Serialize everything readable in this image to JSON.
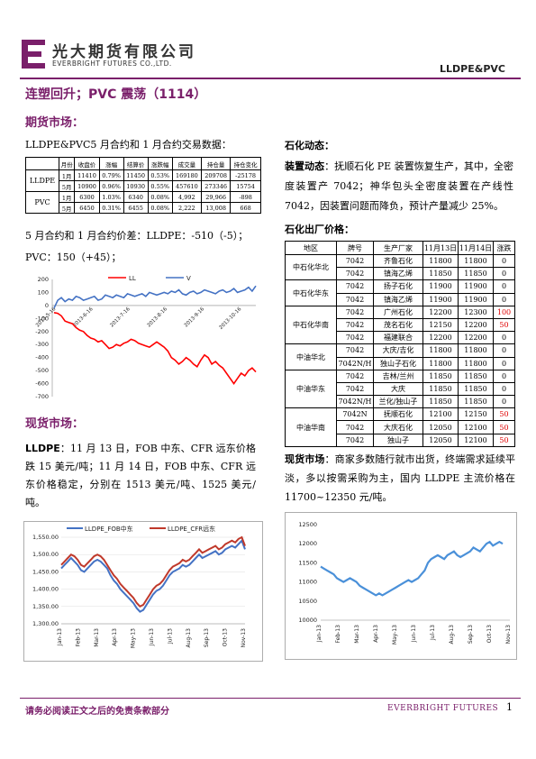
{
  "header": {
    "company_cn": "光大期货有限公司",
    "company_en": "EVERBRIGHT FUTURES CO.,LTD.",
    "product": "LLDPE&PVC",
    "brand_color": "#7a1f6a"
  },
  "headline": "连塑回升；PVC 震荡（1114）",
  "futures": {
    "title": "期货市场：",
    "table_title": "LLDPE&PVC5 月合约和 1 月合约交易数据：",
    "columns": [
      "",
      "月份",
      "收盘价",
      "涨幅",
      "结算价",
      "涨跌幅",
      "成交量",
      "持仓量",
      "持仓变化"
    ],
    "rows": [
      {
        "name": "LLDPE",
        "month": "1月",
        "close": "11410",
        "chg": "0.79%",
        "settle": "11450",
        "chgpct": "0.53%",
        "volume": "169180",
        "oi": "209708",
        "oichg": "-25178"
      },
      {
        "name": "",
        "month": "5月",
        "close": "10900",
        "chg": "0.96%",
        "settle": "10930",
        "chgpct": "0.55%",
        "volume": "457610",
        "oi": "273346",
        "oichg": "15754"
      },
      {
        "name": "PVC",
        "month": "1月",
        "close": "6300",
        "chg": "1.03%",
        "settle": "6340",
        "chgpct": "0.08%",
        "volume": "4,992",
        "oi": "29,966",
        "oichg": "-898"
      },
      {
        "name": "",
        "month": "5月",
        "close": "6450",
        "chg": "0.31%",
        "settle": "6455",
        "chgpct": "0.08%",
        "volume": "2,222",
        "oi": "13,008",
        "oichg": "668"
      }
    ],
    "spread_line1": "5 月合约和 1 月合约价差：LLDPE：-510（-5）；",
    "spread_line2": "PVC：150（+45）；"
  },
  "spot": {
    "title": "现货市场：",
    "para_label": "LLDPE",
    "para": "：11 月 13 日，FOB 中东、CFR 远东价格跌 15 美元/吨；11 月 14 日，FOB 中东、CFR 远东价格稳定，分别在 1513 美元/吨、1525 美元/吨。"
  },
  "petro": {
    "title": "石化动态：",
    "label": "装置动态",
    "para": "：抚顺石化 PE 装置恢复生产，其中，全密度装置产 7042；神华包头全密度装置在产线性 7042，因装置问题而降负，预计产量减少 25%。",
    "price_title": "石化出厂价格：",
    "columns": [
      "地区",
      "牌号",
      "生产厂家",
      "11月13日",
      "11月14日",
      "涨跌"
    ],
    "rows": [
      {
        "region": "中石化华北",
        "grade": "7042",
        "maker": "齐鲁石化",
        "d13": "11800",
        "d14": "11800",
        "chg": "0"
      },
      {
        "region": "",
        "grade": "7042",
        "maker": "镇海乙烯",
        "d13": "11850",
        "d14": "11850",
        "chg": "0"
      },
      {
        "region": "中石化华东",
        "grade": "7042",
        "maker": "扬子石化",
        "d13": "11900",
        "d14": "11900",
        "chg": "0"
      },
      {
        "region": "",
        "grade": "7042",
        "maker": "镇海乙烯",
        "d13": "11900",
        "d14": "11900",
        "chg": "0"
      },
      {
        "region": "中石化华南",
        "grade": "7042",
        "maker": "广州石化",
        "d13": "12200",
        "d14": "12300",
        "chg": "100"
      },
      {
        "region": "",
        "grade": "7042",
        "maker": "茂名石化",
        "d13": "12150",
        "d14": "12200",
        "chg": "50"
      },
      {
        "region": "",
        "grade": "7042",
        "maker": "福建联合",
        "d13": "12200",
        "d14": "12200",
        "chg": "0"
      },
      {
        "region": "中油华北",
        "grade": "7042",
        "maker": "大庆/吉化",
        "d13": "11800",
        "d14": "11800",
        "chg": "0"
      },
      {
        "region": "",
        "grade": "7042N/H",
        "maker": "独山子石化",
        "d13": "11800",
        "d14": "11800",
        "chg": "0"
      },
      {
        "region": "中油华东",
        "grade": "7042",
        "maker": "吉林/兰州",
        "d13": "11850",
        "d14": "11850",
        "chg": "0"
      },
      {
        "region": "",
        "grade": "7042",
        "maker": "大庆",
        "d13": "11850",
        "d14": "11850",
        "chg": "0"
      },
      {
        "region": "",
        "grade": "7042N/H",
        "maker": "兰化/独山子",
        "d13": "11850",
        "d14": "11850",
        "chg": "0"
      },
      {
        "region": "中油华南",
        "grade": "7042N",
        "maker": "抚顺石化",
        "d13": "12100",
        "d14": "12150",
        "chg": "50"
      },
      {
        "region": "",
        "grade": "7042",
        "maker": "大庆石化",
        "d13": "12050",
        "d14": "12100",
        "chg": "50"
      },
      {
        "region": "",
        "grade": "7042",
        "maker": "独山子",
        "d13": "12050",
        "d14": "12100",
        "chg": "50"
      }
    ],
    "spot_label": "现货市场",
    "spot_para": "：商家多数随行就市出货，终端需求延续平淡，多以按需采购为主，国内 LLDPE 主流价格在 11700~12350 元/吨。"
  },
  "footer": {
    "disclaimer": "请务必阅读正文之后的免责条款部分",
    "brand": "EVERBRIGHT FUTURES",
    "page": "1"
  },
  "chart_data": [
    {
      "type": "line",
      "series": [
        {
          "name": "LL",
          "color": "#ff0000",
          "values": [
            -55,
            -60,
            -80,
            -120,
            -130,
            -140,
            -170,
            -190,
            -200,
            -230,
            -250,
            -260,
            -280,
            -270,
            -300,
            -330,
            -320,
            -300,
            -310,
            -290,
            -280,
            -260,
            -270,
            -290,
            -300,
            -310,
            -320,
            -300,
            -280,
            -300,
            -320,
            -350,
            -400,
            -420,
            -450,
            -430,
            -400,
            -420,
            -450,
            -470,
            -420,
            -380,
            -400,
            -450,
            -430,
            -460,
            -480,
            -520,
            -560,
            -600,
            -560,
            -520,
            -540,
            -500,
            -480,
            -510
          ]
        },
        {
          "name": "V",
          "color": "#4472c4",
          "values": [
            -20,
            40,
            60,
            30,
            50,
            40,
            70,
            60,
            40,
            50,
            60,
            70,
            40,
            50,
            80,
            70,
            60,
            80,
            70,
            60,
            90,
            80,
            70,
            80,
            90,
            70,
            100,
            90,
            80,
            90,
            100,
            90,
            110,
            100,
            120,
            90,
            80,
            100,
            110,
            90,
            100,
            120,
            110,
            100,
            90,
            110,
            120,
            100,
            110,
            130,
            100,
            110,
            120,
            140,
            110,
            150
          ]
        }
      ],
      "x_ticks": [
        "2013-5-16",
        "2013-6-16",
        "2013-7-16",
        "2013-8-16",
        "2013-9-16",
        "2013-10-16"
      ],
      "ylim": [
        -700,
        200
      ],
      "y_ticks": [
        200,
        100,
        0,
        -100,
        -200,
        -300,
        -400,
        -500,
        -600,
        -700
      ],
      "legend_position": "top"
    },
    {
      "type": "line",
      "series": [
        {
          "name": "LLDPE_FOB中东",
          "color": "#4472c4",
          "values": [
            1460,
            1470,
            1480,
            1490,
            1480,
            1470,
            1455,
            1450,
            1460,
            1470,
            1480,
            1485,
            1480,
            1470,
            1460,
            1440,
            1425,
            1415,
            1400,
            1390,
            1380,
            1370,
            1360,
            1345,
            1335,
            1340,
            1355,
            1370,
            1385,
            1395,
            1400,
            1410,
            1425,
            1440,
            1450,
            1455,
            1460,
            1470,
            1465,
            1470,
            1480,
            1490,
            1500,
            1490,
            1495,
            1500,
            1505,
            1510,
            1500,
            1505,
            1515,
            1520,
            1525,
            1520,
            1530,
            1540,
            1515
          ]
        },
        {
          "name": "LLDPE_CFR远东",
          "color": "#c0392b",
          "values": [
            1470,
            1480,
            1490,
            1500,
            1495,
            1485,
            1470,
            1465,
            1475,
            1485,
            1495,
            1500,
            1495,
            1485,
            1470,
            1455,
            1440,
            1430,
            1415,
            1405,
            1395,
            1385,
            1375,
            1360,
            1350,
            1355,
            1370,
            1385,
            1400,
            1410,
            1415,
            1425,
            1440,
            1455,
            1465,
            1470,
            1475,
            1485,
            1480,
            1485,
            1495,
            1505,
            1515,
            1505,
            1510,
            1515,
            1520,
            1525,
            1515,
            1520,
            1530,
            1535,
            1540,
            1535,
            1545,
            1550,
            1525
          ]
        }
      ],
      "x_ticks": [
        "Jan-13",
        "Feb-13",
        "Mar-13",
        "Apr-13",
        "May-13",
        "Jun-13",
        "Jul-13",
        "Aug-13",
        "Sep-13",
        "Oct-13",
        "Nov-13"
      ],
      "y_ticks": [
        "1,550.00",
        "1,500.00",
        "1,450.00",
        "1,400.00",
        "1,350.00",
        "1,300.00"
      ],
      "ylim": [
        1300,
        1550
      ],
      "legend_position": "top"
    },
    {
      "type": "line",
      "series": [
        {
          "name": "",
          "color": "#4a90d9",
          "values": [
            11400,
            11350,
            11300,
            11250,
            11200,
            11100,
            11050,
            11000,
            11050,
            11100,
            11050,
            11000,
            10900,
            10850,
            10800,
            10750,
            10700,
            10650,
            10700,
            10650,
            10700,
            10750,
            10800,
            10850,
            10900,
            10950,
            11000,
            11050,
            11000,
            11050,
            11100,
            11200,
            11300,
            11500,
            11600,
            11650,
            11700,
            11650,
            11600,
            11700,
            11750,
            11800,
            11700,
            11650,
            11700,
            11750,
            11800,
            11900,
            11850,
            11800,
            11900,
            12000,
            12050,
            11950,
            12000,
            12050,
            12000
          ]
        }
      ],
      "x_ticks": [
        "Jan-13",
        "Feb-13",
        "Mar-13",
        "Apr-13",
        "May-13",
        "Jun-13",
        "Jul-13",
        "Aug-13",
        "Sep-13",
        "Oct-13",
        "Nov-13"
      ],
      "y_ticks": [
        12500,
        12000,
        11500,
        11000,
        10500,
        10000
      ],
      "ylim": [
        10000,
        12500
      ]
    }
  ]
}
